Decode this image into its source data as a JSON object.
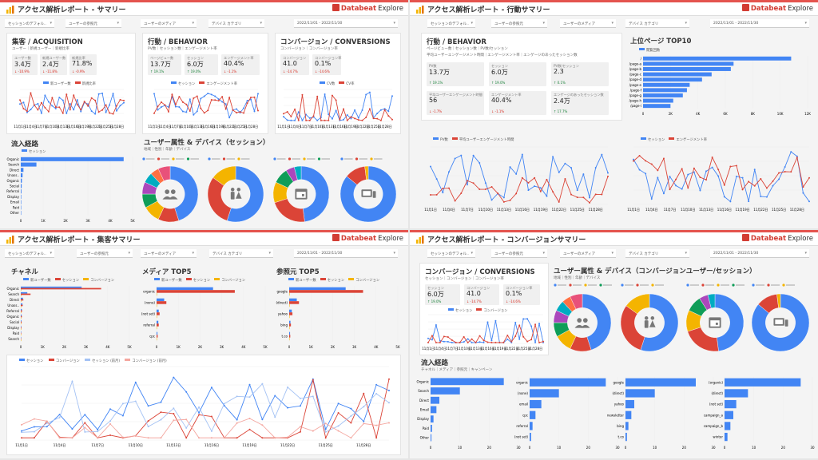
{
  "brand": {
    "name": "Databeat",
    "suffix": "Explore"
  },
  "colors": {
    "blue": "#4285f4",
    "red": "#db4437",
    "yellow": "#f4b400",
    "green": "#0f9d58",
    "pink": "#e8517a",
    "accent": "#e4544e"
  },
  "panels": {
    "summary": {
      "title": "アクセス解析レポート - サマリー",
      "filters": [
        "セッションのデフォル..",
        "ユーザーの参照元",
        "ユーザーのメディア",
        "デバイス カテゴリ"
      ],
      "date": "2022/11/01 - 2022/11/30",
      "acq": {
        "heading": "集客 / ACQUISITION",
        "sub": "ユーザー｜新規ユーザー｜新規比率",
        "kpis": [
          {
            "label": "ユーザー数",
            "value": "3.4万",
            "delta": "↓ -10.9%",
            "dir": "dn"
          },
          {
            "label": "新規ユーザー数",
            "value": "2.4万",
            "delta": "↓ -11.8%",
            "dir": "dn"
          },
          {
            "label": "新規比率",
            "value": "71.8%",
            "delta": "↓ -0.9%",
            "dir": "dn"
          }
        ],
        "legend": [
          "新ユーザー数",
          "新規比率"
        ]
      },
      "beh": {
        "heading": "行動 / BEHAVIOR",
        "sub": "PV数｜セッション数｜エンゲージメント率",
        "kpis": [
          {
            "label": "ページビュー数",
            "value": "13.7万",
            "delta": "↑ 19.1%",
            "dir": "up"
          },
          {
            "label": "セッション",
            "value": "6.0万",
            "delta": "↑ 19.0%",
            "dir": "up"
          },
          {
            "label": "エンゲージメント率",
            "value": "40.4%",
            "delta": "↓ -1.1%",
            "dir": "dn"
          }
        ],
        "legend": [
          "セッション",
          "エンゲージメント率"
        ]
      },
      "conv": {
        "heading": "コンバージョン / CONVERSIONS",
        "sub": "コンバージョン｜コンバージョン率",
        "kpis": [
          {
            "label": "コンバージョン",
            "value": "41.0",
            "delta": "↓ -14.7%",
            "dir": "dn"
          },
          {
            "label": "コンバージョン率",
            "value": "0.1%",
            "delta": "↓ -14.6%",
            "dir": "dn"
          }
        ],
        "legend": [
          "CV数",
          "CV率"
        ]
      },
      "flow": {
        "heading": "流入経路",
        "legend": "セッション",
        "labels": [
          "Organic",
          "Search",
          "Direct",
          "Unass..",
          "Organic",
          "Social",
          "Referral",
          "Display",
          "Email",
          "Paid",
          "Other"
        ],
        "ticks": [
          "0",
          "1K",
          "2K",
          "3K",
          "4K",
          "5K"
        ]
      },
      "demo": {
        "heading": "ユーザー属性 & デバイス（セッション）",
        "sub": "地域｜性別｜年齢｜デバイス"
      }
    },
    "behavior": {
      "title": "アクセス解析レポート - 行動サマリー",
      "filters": [
        "セッションのデフォル..",
        "ユーザーの参照元",
        "ユーザーのメディア",
        "デバイス カテゴリ"
      ],
      "date": "2022/11/01 - 2022/11/30",
      "heading": "行動 / BEHAVIOR",
      "sub": "ページビュー数｜セッション数｜PV数/セッション",
      "sub2": "平均ユーザーエンゲージメント時間｜エンゲージメント率｜エンゲージのあったセッション数",
      "kpis": [
        {
          "label": "PV数",
          "value": "13.7万",
          "delta": "↑ 19.1%",
          "dir": "up"
        },
        {
          "label": "セッション",
          "value": "6.0万",
          "delta": "↑ 19.0%",
          "dir": "up"
        },
        {
          "label": "PV数/セッション",
          "value": "2.3",
          "delta": "↑ 0.1%",
          "dir": "up"
        },
        {
          "label": "平均ユーザーエンゲージメント時間",
          "value": "56",
          "delta": "↓ -1.7%",
          "dir": "dn"
        },
        {
          "label": "エンゲージメント率",
          "value": "40.4%",
          "delta": "↓ -1.1%",
          "dir": "dn"
        },
        {
          "label": "エンゲージのあったセッション数",
          "value": "2.4万",
          "delta": "↑ 17.7%",
          "dir": "up"
        }
      ],
      "top10": {
        "heading": "上位ページ TOP10",
        "legend": "閲覧回数",
        "ticks": [
          "0",
          "2K",
          "4K",
          "6K",
          "8K",
          "10K",
          "12K"
        ]
      },
      "legend1": [
        "PV数",
        "平均ユーザーエンゲージメント時間"
      ],
      "legend2": [
        "セッション",
        "エンゲージメント率"
      ]
    },
    "acquisition": {
      "title": "アクセス解析レポート - 集客サマリー",
      "filters": [
        "セッションのデフォル..",
        "ユーザーの参照元",
        "ユーザーのメディア",
        "デバイス カテゴリ"
      ],
      "date": "2022/11/01 - 2022/11/30",
      "channel": {
        "heading": "チャネル",
        "labels": [
          "Organic",
          "Search",
          "Direct",
          "Unass..",
          "Referral",
          "Organic",
          "Social",
          "Display",
          "Paid",
          "Search"
        ]
      },
      "media": {
        "heading": "メディア TOP5",
        "labels": [
          "organic",
          "(none)",
          "(not set)",
          "referral",
          "cpc"
        ]
      },
      "source": {
        "heading": "参照元 TOP5",
        "labels": [
          "google",
          "(direct)",
          "yahoo",
          "bing",
          "t.co"
        ]
      },
      "legend3": [
        "新ユーザー数",
        "セッション",
        "コンバージョン"
      ],
      "ticksA": [
        "0",
        "1K",
        "2K",
        "3K",
        "4K",
        "5K"
      ],
      "legendBottom": [
        "セッション",
        "コンバージョン",
        "セッション (前月)",
        "コンバージョン (前月)"
      ],
      "yTicks": [
        "0",
        "500",
        "1000",
        "1500",
        "2000",
        "2500",
        "3000"
      ],
      "y2Ticks": [
        "0",
        "2",
        "4",
        "6",
        "8"
      ]
    },
    "conversion": {
      "title": "アクセス解析レポート - コンバージョンサマリー",
      "filters": [
        "セッションのデフォル..",
        "ユーザーの参照元",
        "ユーザーのメディア",
        "デバイス カテゴリ"
      ],
      "date": "2022/11/01 - 2022/11/30",
      "conv": {
        "heading": "コンバージョン / CONVERSIONS",
        "sub": "セッション｜コンバージョン｜コンバージョン率",
        "kpis": [
          {
            "label": "セッション",
            "value": "6.0万",
            "delta": "↑ 19.0%",
            "dir": "up"
          },
          {
            "label": "コンバージョン",
            "value": "41.0",
            "delta": "↓ -14.7%",
            "dir": "dn"
          },
          {
            "label": "コンバージョン率",
            "value": "0.1%",
            "delta": "↓ -14.6%",
            "dir": "dn"
          }
        ],
        "legend": [
          "セッション",
          "コンバージョン"
        ]
      },
      "demo": {
        "heading": "ユーザー属性 & デバイス（コンバージョンユーザー/セッション）",
        "sub": "地域｜性別｜年齢｜デバイス"
      },
      "flow": {
        "heading": "流入経路",
        "sub": "チャネル｜メディア｜参照元｜キャンペーン",
        "legend": "コンバージョン",
        "ch": [
          "Organic",
          "Search",
          "Direct",
          "Email",
          "Display",
          "Paid",
          "Other"
        ],
        "md": [
          "organic",
          "(none)",
          "email",
          "cpc",
          "referral",
          "(not set)"
        ],
        "src": [
          "google",
          "(direct)",
          "yahoo",
          "newsletter",
          "bing",
          "t.co"
        ],
        "cp": [
          "(organic)",
          "(direct)",
          "(not set)",
          "campaign_a",
          "campaign_b",
          "winter"
        ]
      }
    }
  }
}
